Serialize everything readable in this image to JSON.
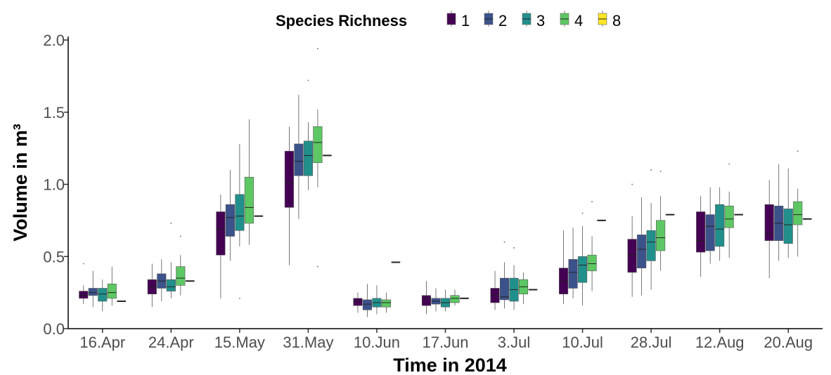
{
  "chart_data": {
    "type": "boxplot",
    "xlabel": "Time in 2014",
    "ylabel": "Volume in m³",
    "ylim": [
      0,
      2.0
    ],
    "y_ticks": [
      "0.0",
      "0.5",
      "1.0",
      "1.5",
      "2.0"
    ],
    "y_tick_values": [
      0,
      0.5,
      1.0,
      1.5,
      2.0
    ],
    "grid": false,
    "legend": {
      "title": "Species Richness",
      "position": "top",
      "entries": [
        "1",
        "2",
        "3",
        "4",
        "8"
      ]
    },
    "colors": [
      "#440154",
      "#3b528b",
      "#21908c",
      "#5dc863",
      "#fde725"
    ],
    "categories": [
      "16.Apr",
      "24.Apr",
      "15.May",
      "31.May",
      "10.Jun",
      "17.Jun",
      "3.Jul",
      "10.Jul",
      "28.Jul",
      "12.Aug",
      "20.Aug"
    ],
    "series": [
      {
        "name": "1",
        "boxes": [
          {
            "min": 0.17,
            "q1": 0.21,
            "median": 0.23,
            "q3": 0.26,
            "max": 0.3
          },
          {
            "min": 0.15,
            "q1": 0.24,
            "median": 0.29,
            "q3": 0.34,
            "max": 0.45
          },
          {
            "min": 0.21,
            "q1": 0.51,
            "median": 0.69,
            "q3": 0.81,
            "max": 0.93
          },
          {
            "min": 0.44,
            "q1": 0.84,
            "median": 1.01,
            "q3": 1.23,
            "max": 1.4
          },
          {
            "min": 0.11,
            "q1": 0.16,
            "median": 0.19,
            "q3": 0.21,
            "max": 0.25
          },
          {
            "min": 0.1,
            "q1": 0.16,
            "median": 0.21,
            "q3": 0.23,
            "max": 0.33
          },
          {
            "min": 0.13,
            "q1": 0.18,
            "median": 0.23,
            "q3": 0.28,
            "max": 0.4
          },
          {
            "min": 0.17,
            "q1": 0.24,
            "median": 0.33,
            "q3": 0.42,
            "max": 0.68
          },
          {
            "min": 0.22,
            "q1": 0.39,
            "median": 0.51,
            "q3": 0.62,
            "max": 0.78
          },
          {
            "min": 0.36,
            "q1": 0.53,
            "median": 0.61,
            "q3": 0.81,
            "max": 0.92
          },
          {
            "min": 0.35,
            "q1": 0.61,
            "median": 0.66,
            "q3": 0.86,
            "max": 1.03
          }
        ]
      },
      {
        "name": "2",
        "boxes": [
          {
            "min": 0.15,
            "q1": 0.23,
            "median": 0.25,
            "q3": 0.28,
            "max": 0.4
          },
          {
            "min": 0.19,
            "q1": 0.28,
            "median": 0.33,
            "q3": 0.38,
            "max": 0.48
          },
          {
            "min": 0.47,
            "q1": 0.64,
            "median": 0.77,
            "q3": 0.86,
            "max": 1.1
          },
          {
            "min": 0.76,
            "q1": 1.06,
            "median": 1.16,
            "q3": 1.28,
            "max": 1.62
          },
          {
            "min": 0.08,
            "q1": 0.13,
            "median": 0.17,
            "q3": 0.2,
            "max": 0.31
          },
          {
            "min": 0.12,
            "q1": 0.17,
            "median": 0.19,
            "q3": 0.21,
            "max": 0.28
          },
          {
            "min": 0.14,
            "q1": 0.2,
            "median": 0.22,
            "q3": 0.35,
            "max": 0.46
          },
          {
            "min": 0.21,
            "q1": 0.28,
            "median": 0.39,
            "q3": 0.48,
            "max": 0.7
          },
          {
            "min": 0.23,
            "q1": 0.42,
            "median": 0.55,
            "q3": 0.65,
            "max": 0.91
          },
          {
            "min": 0.45,
            "q1": 0.54,
            "median": 0.71,
            "q3": 0.79,
            "max": 0.98
          },
          {
            "min": 0.47,
            "q1": 0.61,
            "median": 0.73,
            "q3": 0.85,
            "max": 1.14
          }
        ]
      },
      {
        "name": "3",
        "boxes": [
          {
            "min": 0.12,
            "q1": 0.19,
            "median": 0.24,
            "q3": 0.28,
            "max": 0.34
          },
          {
            "min": 0.21,
            "q1": 0.26,
            "median": 0.29,
            "q3": 0.34,
            "max": 0.46
          },
          {
            "min": 0.57,
            "q1": 0.68,
            "median": 0.78,
            "q3": 0.93,
            "max": 1.28
          },
          {
            "min": 0.96,
            "q1": 1.06,
            "median": 1.2,
            "q3": 1.3,
            "max": 1.43
          },
          {
            "min": 0.1,
            "q1": 0.15,
            "median": 0.18,
            "q3": 0.21,
            "max": 0.3
          },
          {
            "min": 0.12,
            "q1": 0.15,
            "median": 0.18,
            "q3": 0.21,
            "max": 0.27
          },
          {
            "min": 0.13,
            "q1": 0.19,
            "median": 0.27,
            "q3": 0.35,
            "max": 0.44
          },
          {
            "min": 0.16,
            "q1": 0.32,
            "median": 0.44,
            "q3": 0.5,
            "max": 0.71
          },
          {
            "min": 0.27,
            "q1": 0.47,
            "median": 0.6,
            "q3": 0.68,
            "max": 0.87
          },
          {
            "min": 0.47,
            "q1": 0.57,
            "median": 0.69,
            "q3": 0.86,
            "max": 0.98
          },
          {
            "min": 0.49,
            "q1": 0.59,
            "median": 0.72,
            "q3": 0.83,
            "max": 1.11
          }
        ]
      },
      {
        "name": "4",
        "boxes": [
          {
            "min": 0.16,
            "q1": 0.21,
            "median": 0.25,
            "q3": 0.31,
            "max": 0.43
          },
          {
            "min": 0.23,
            "q1": 0.3,
            "median": 0.35,
            "q3": 0.43,
            "max": 0.51
          },
          {
            "min": 0.58,
            "q1": 0.73,
            "median": 0.84,
            "q3": 1.05,
            "max": 1.45
          },
          {
            "min": 0.98,
            "q1": 1.15,
            "median": 1.29,
            "q3": 1.4,
            "max": 1.52
          },
          {
            "min": 0.11,
            "q1": 0.15,
            "median": 0.18,
            "q3": 0.2,
            "max": 0.25
          },
          {
            "min": 0.16,
            "q1": 0.18,
            "median": 0.21,
            "q3": 0.23,
            "max": 0.27
          },
          {
            "min": 0.17,
            "q1": 0.24,
            "median": 0.29,
            "q3": 0.34,
            "max": 0.39
          },
          {
            "min": 0.26,
            "q1": 0.4,
            "median": 0.45,
            "q3": 0.51,
            "max": 0.64
          },
          {
            "min": 0.4,
            "q1": 0.54,
            "median": 0.63,
            "q3": 0.75,
            "max": 0.92
          },
          {
            "min": 0.49,
            "q1": 0.7,
            "median": 0.76,
            "q3": 0.85,
            "max": 0.95
          },
          {
            "min": 0.5,
            "q1": 0.72,
            "median": 0.79,
            "q3": 0.88,
            "max": 0.97
          }
        ]
      },
      {
        "name": "8",
        "values": [
          0.19,
          0.33,
          0.78,
          1.2,
          0.46,
          0.21,
          0.27,
          0.75,
          0.79,
          0.79,
          0.76
        ]
      }
    ],
    "outliers": [
      {
        "series": "1",
        "category": "16.Apr",
        "value": 0.45
      },
      {
        "series": "3",
        "category": "24.Apr",
        "value": 0.73
      },
      {
        "series": "4",
        "category": "24.Apr",
        "value": 0.64
      },
      {
        "series": "3",
        "category": "15.May",
        "value": 0.21
      },
      {
        "series": "3",
        "category": "31.May",
        "value": 1.72
      },
      {
        "series": "4",
        "category": "31.May",
        "value": 1.94
      },
      {
        "series": "4",
        "category": "31.May",
        "value": 0.43
      },
      {
        "series": "2",
        "category": "3.Jul",
        "value": 0.6
      },
      {
        "series": "3",
        "category": "3.Jul",
        "value": 0.56
      },
      {
        "series": "3",
        "category": "10.Jul",
        "value": 0.8
      },
      {
        "series": "4",
        "category": "10.Jul",
        "value": 0.88
      },
      {
        "series": "1",
        "category": "28.Jul",
        "value": 1.0
      },
      {
        "series": "3",
        "category": "28.Jul",
        "value": 1.1
      },
      {
        "series": "4",
        "category": "28.Jul",
        "value": 1.09
      },
      {
        "series": "4",
        "category": "12.Aug",
        "value": 1.14
      },
      {
        "series": "4",
        "category": "20.Aug",
        "value": 1.23
      }
    ]
  }
}
